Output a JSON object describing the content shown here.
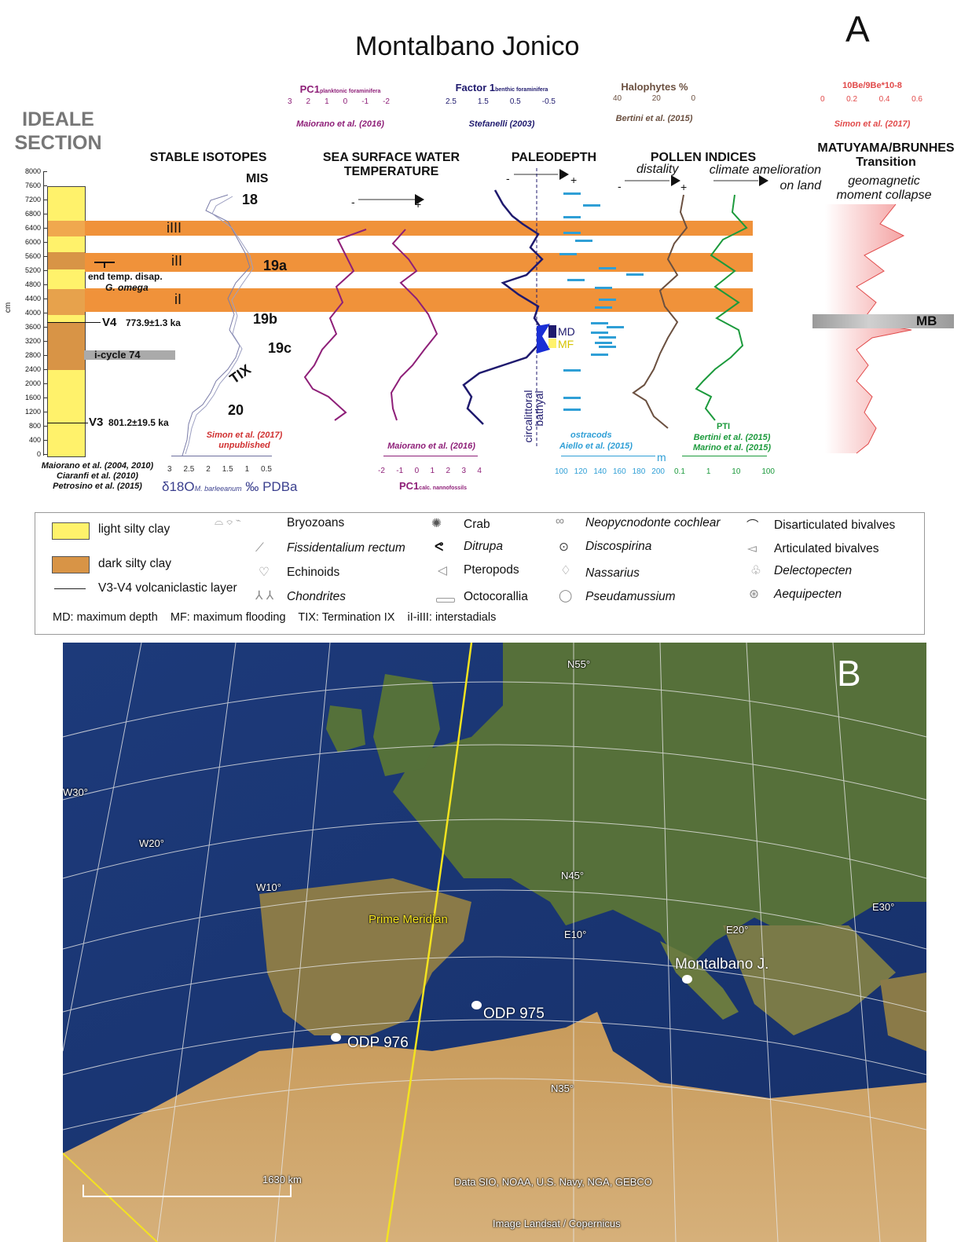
{
  "panel_a": {
    "letter": "A",
    "title": "Montalbano Jonico",
    "section_title_1": "IDEALE",
    "section_title_2": "SECTION",
    "depth_axis_unit": "cm",
    "depth_ticks": [
      "8000",
      "7600",
      "7200",
      "6800",
      "6400",
      "6000",
      "5600",
      "5200",
      "4800",
      "4400",
      "4000",
      "3600",
      "3200",
      "2800",
      "2400",
      "2000",
      "1600",
      "1200",
      "800",
      "400",
      "0"
    ],
    "column_notes": {
      "end_temp": "end temp. disap.",
      "g_omega": "G. omega",
      "v4": "V4",
      "v4_age": "773.9±1.3 ka",
      "icycle": "i-cycle 74",
      "v3": "V3",
      "v3_age": "801.2±19.5 ka"
    },
    "column_refs": [
      "Maiorano et al. (2004, 2010)",
      "Ciaranfi et al. (2010)",
      "Petrosino et al. (2015)"
    ],
    "interstadials": [
      "iIII",
      "iII",
      "iI"
    ],
    "mis": {
      "label": "MIS",
      "stages": [
        "18",
        "19a",
        "19b",
        "19c",
        "TIX",
        "20"
      ]
    },
    "headers": {
      "stable_isotopes": "STABLE ISOTOPES",
      "sst_1": "SEA SURFACE WATER",
      "sst_2": "TEMPERATURE",
      "paleodepth": "PALEODEPTH",
      "pollen": "POLLEN INDICES",
      "matuyama_1": "MATUYAMA/BRUNHES",
      "matuyama_2": "Transition",
      "geomag_1": "geomagnetic",
      "geomag_2": "moment collapse",
      "distality": "distality",
      "climate_1": "climate amelioration",
      "climate_2": "on land"
    },
    "top_scales": {
      "pc1_plank": {
        "name": "PC1",
        "sub": "planktonic foraminifera",
        "ticks": [
          "3",
          "2",
          "1",
          "0",
          "-1",
          "-2"
        ],
        "ref": "Maiorano et al. (2016)"
      },
      "factor1": {
        "name": "Factor 1",
        "sub": "benthic foraminifera",
        "ticks": [
          "2.5",
          "1.5",
          "0.5",
          "-0.5"
        ],
        "ref": "Stefanelli (2003)"
      },
      "halophytes": {
        "name": "Halophytes %",
        "ticks": [
          "40",
          "20",
          "0"
        ],
        "ref": "Bertini et al. (2015)"
      },
      "be": {
        "name": "10Be/9Be*10-8",
        "ticks": [
          "0",
          "0.2",
          "0.4",
          "0.6"
        ],
        "ref": "Simon et al. (2017)"
      }
    },
    "bottom_scales": {
      "d18o": {
        "ticks": [
          "3",
          "2.5",
          "2",
          "1.5",
          "1",
          "0.5"
        ],
        "label_pre": "δ18O",
        "label_sub": "M. barleeanum",
        "label_post": "‰ PDBa",
        "ref_1": "Simon et al. (2017)",
        "ref_2": "unpublished"
      },
      "pc1_nanno": {
        "ticks": [
          "-2",
          "-1",
          "0",
          "1",
          "2",
          "3",
          "4"
        ],
        "name": "PC1",
        "sub": "calc. nannofossils",
        "ref": "Maiorano et al. (2016)"
      },
      "ostracods": {
        "ticks": [
          "100",
          "120",
          "140",
          "160",
          "180",
          "200"
        ],
        "unit": "m",
        "name": "ostracods",
        "ref": "Aiello et al. (2015)"
      },
      "pti": {
        "ticks": [
          "0.1",
          "1",
          "10",
          "100"
        ],
        "name": "PTI",
        "ref_1": "Bertini et al. (2015)",
        "ref_2": "Marino et al. (2015)"
      }
    },
    "paleodepth_labels": {
      "circalittoral": "circalittoral",
      "bathyal": "bathyal",
      "md": "MD",
      "mf": "MF"
    },
    "mb": "MB",
    "signs": {
      "minus": "-",
      "plus": "+"
    }
  },
  "legend": {
    "light_silty_clay": "light silty clay",
    "dark_silty_clay": "dark silty clay",
    "volcaniclastic": "V3-V4 volcaniclastic layer",
    "bryozoans": "Bryozoans",
    "fissidentalium": "Fissidentalium rectum",
    "echinoids": "Echinoids",
    "chondrites": "Chondrites",
    "crab": "Crab",
    "ditrupa": "Ditrupa",
    "pteropods": "Pteropods",
    "octocorallia": "Octocorallia",
    "neopycnodonte": "Neopycnodonte cochlear",
    "discospirina": "Discospirina",
    "nassarius": "Nassarius",
    "pseudamussium": "Pseudamussium",
    "disarticulated": "Disarticulated bivalves",
    "articulated": "Articulated bivalves",
    "delectopecten": "Delectopecten",
    "aequipecten": "Aequipecten",
    "abbrev": "MD: maximum depth    MF: maximum flooding    TIX: Termination IX    iI-iIII: interstadials"
  },
  "panel_b": {
    "letter": "B",
    "graticule": [
      "N55°",
      "N45°",
      "N35°",
      "W30°",
      "W20°",
      "W10°",
      "E10°",
      "E20°",
      "E30°"
    ],
    "prime_meridian": "Prime Meridian",
    "sites": [
      "Montalbano J.",
      "ODP 975",
      "ODP 976"
    ],
    "scale": "1630 km",
    "credit_1": "Data SIO, NOAA, U.S. Navy, NGA, GEBCO",
    "credit_2": "Image Landsat / Copernicus"
  },
  "colors": {
    "orange_band": "#f0923a",
    "light_clay": "#fff26b",
    "dark_clay": "#d89446",
    "isotope": "#6d6f9e",
    "sst": "#8e1f78",
    "paleodepth": "#1f1a6e",
    "ostracod": "#2f9fd6",
    "halophyte": "#6b5040",
    "pti": "#1c9a3c",
    "be": "#e14a4a"
  }
}
